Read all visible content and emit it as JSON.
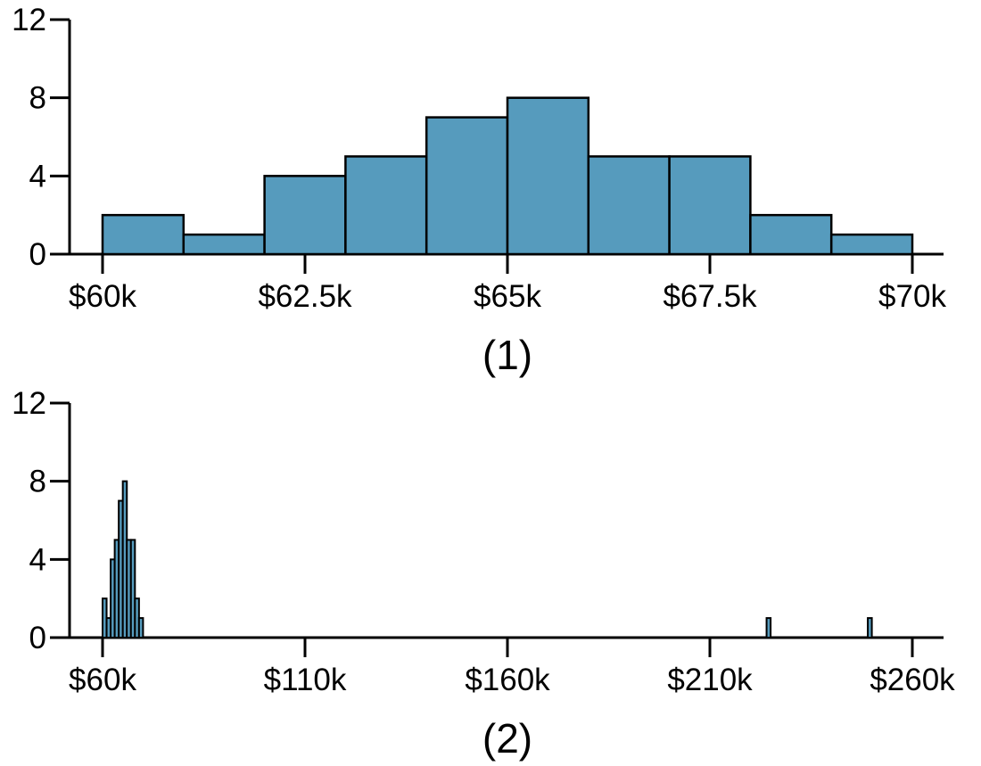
{
  "figure": {
    "background": "#ffffff",
    "bar_fill": "#569BBD",
    "bar_stroke": "#000000",
    "axis_color": "#000000",
    "text_color": "#000000"
  },
  "chart_data": [
    {
      "type": "bar",
      "subtype": "histogram",
      "caption": "(1)",
      "title": "",
      "xlabel": "",
      "ylabel": "",
      "x_unit": "salary, thousands of USD",
      "grid": false,
      "legend": null,
      "xlim": [
        60,
        70
      ],
      "ylim": [
        0,
        12
      ],
      "y_ticks": [
        0,
        4,
        8,
        12
      ],
      "x_ticks": [
        {
          "value": 60,
          "label": "$60k"
        },
        {
          "value": 62.5,
          "label": "$62.5k"
        },
        {
          "value": 65,
          "label": "$65k"
        },
        {
          "value": 67.5,
          "label": "$67.5k"
        },
        {
          "value": 70,
          "label": "$70k"
        }
      ],
      "bins": [
        {
          "x0": 60,
          "x1": 61,
          "count": 2
        },
        {
          "x0": 61,
          "x1": 62,
          "count": 1
        },
        {
          "x0": 62,
          "x1": 63,
          "count": 4
        },
        {
          "x0": 63,
          "x1": 64,
          "count": 5
        },
        {
          "x0": 64,
          "x1": 65,
          "count": 7
        },
        {
          "x0": 65,
          "x1": 66,
          "count": 8
        },
        {
          "x0": 66,
          "x1": 67,
          "count": 5
        },
        {
          "x0": 67,
          "x1": 68,
          "count": 5
        },
        {
          "x0": 68,
          "x1": 69,
          "count": 2
        },
        {
          "x0": 69,
          "x1": 70,
          "count": 1
        }
      ]
    },
    {
      "type": "bar",
      "subtype": "histogram",
      "caption": "(2)",
      "title": "",
      "xlabel": "",
      "ylabel": "",
      "x_unit": "salary, thousands of USD",
      "grid": false,
      "legend": null,
      "xlim": [
        60,
        260
      ],
      "ylim": [
        0,
        12
      ],
      "y_ticks": [
        0,
        4,
        8,
        12
      ],
      "x_ticks": [
        {
          "value": 60,
          "label": "$60k"
        },
        {
          "value": 110,
          "label": "$110k"
        },
        {
          "value": 160,
          "label": "$160k"
        },
        {
          "value": 210,
          "label": "$210k"
        },
        {
          "value": 260,
          "label": "$260k"
        }
      ],
      "bins": [
        {
          "x0": 60,
          "x1": 61,
          "count": 2
        },
        {
          "x0": 61,
          "x1": 62,
          "count": 1
        },
        {
          "x0": 62,
          "x1": 63,
          "count": 4
        },
        {
          "x0": 63,
          "x1": 64,
          "count": 5
        },
        {
          "x0": 64,
          "x1": 65,
          "count": 7
        },
        {
          "x0": 65,
          "x1": 66,
          "count": 8
        },
        {
          "x0": 66,
          "x1": 67,
          "count": 5
        },
        {
          "x0": 67,
          "x1": 68,
          "count": 5
        },
        {
          "x0": 68,
          "x1": 69,
          "count": 2
        },
        {
          "x0": 69,
          "x1": 70,
          "count": 1
        },
        {
          "x0": 224,
          "x1": 225,
          "count": 1
        },
        {
          "x0": 249,
          "x1": 250,
          "count": 1
        }
      ]
    }
  ]
}
